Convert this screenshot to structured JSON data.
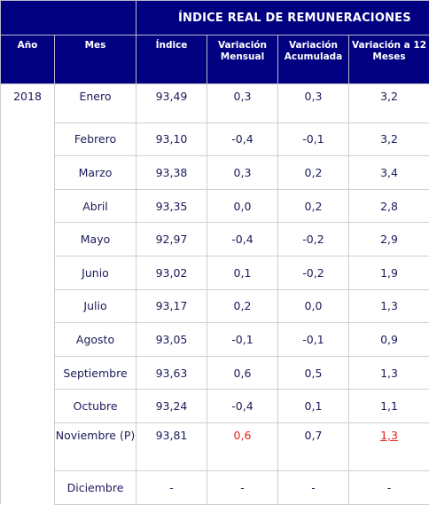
{
  "table": {
    "banner": "ÍNDICE REAL DE REMUNERACIONES",
    "headers": [
      "Año",
      "Mes",
      "Índice",
      "Variación\nMensual",
      "Variación\nAcumulada",
      "Variación a 12\nMeses"
    ],
    "year": "2018",
    "rows": [
      {
        "mes": "Enero",
        "indice": "93,49",
        "mensual": "0,3",
        "acumulada": "0,3",
        "doce": "3,2"
      },
      {
        "mes": "Febrero",
        "indice": "93,10",
        "mensual": "-0,4",
        "acumulada": "-0,1",
        "doce": "3,2"
      },
      {
        "mes": "Marzo",
        "indice": "93,38",
        "mensual": "0,3",
        "acumulada": "0,2",
        "doce": "3,4"
      },
      {
        "mes": "Abril",
        "indice": "93,35",
        "mensual": "0,0",
        "acumulada": "0,2",
        "doce": "2,8"
      },
      {
        "mes": "Mayo",
        "indice": "92,97",
        "mensual": "-0,4",
        "acumulada": "-0,2",
        "doce": "2,9"
      },
      {
        "mes": "Junio",
        "indice": "93,02",
        "mensual": "0,1",
        "acumulada": "-0,2",
        "doce": "1,9"
      },
      {
        "mes": "Julio",
        "indice": "93,17",
        "mensual": "0,2",
        "acumulada": "0,0",
        "doce": "1,3"
      },
      {
        "mes": "Agosto",
        "indice": "93,05",
        "mensual": "-0,1",
        "acumulada": "-0,1",
        "doce": "0,9"
      },
      {
        "mes": "Septiembre",
        "indice": "93,63",
        "mensual": "0,6",
        "acumulada": "0,5",
        "doce": "1,3"
      },
      {
        "mes": "Octubre",
        "indice": "93,24",
        "mensual": "-0,4",
        "acumulada": "0,1",
        "doce": "1,1"
      },
      {
        "mes": "Noviembre (P)",
        "indice": "93,81",
        "mensual": "0,6",
        "acumulada": "0,7",
        "doce": "1,3"
      },
      {
        "mes": "Diciembre",
        "indice": "-",
        "mensual": "-",
        "acumulada": "-",
        "doce": "-"
      }
    ]
  },
  "colors": {
    "header_bg": "#000080",
    "header_text": "#ffffff",
    "cell_text": "#1a1a5a",
    "highlight": "#e62117"
  }
}
